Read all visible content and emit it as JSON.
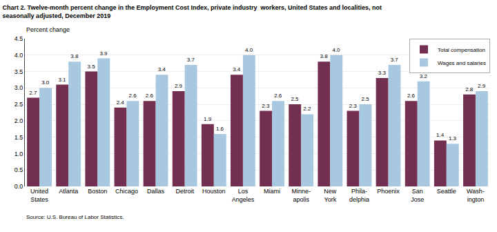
{
  "chart_data": {
    "type": "bar",
    "title": "Chart 2. Twelve-month percent change in the Employment Cost Index, private industry  workers, United States and localities, not\nseasonally adjusted, December 2019",
    "ylabel": "Percent change",
    "annotations": [
      "Source: U.S. Bureau of Labor Statistics."
    ],
    "categories": [
      "United\nStates",
      "Atlanta",
      "Boston",
      "Chicago",
      "Dallas",
      "Detroit",
      "Houston",
      "Los\nAngeles",
      "Miami",
      "Minne-\napolis",
      "New\nYork",
      "Phila-\ndelphia",
      "Phoenix",
      "San\nJose",
      "Seattle",
      "Wash-\nington"
    ],
    "series": [
      {
        "name": "Total compensation",
        "color": "#722F4F",
        "values": [
          2.7,
          3.1,
          3.5,
          2.4,
          2.6,
          2.9,
          1.9,
          3.4,
          2.3,
          2.5,
          3.8,
          2.3,
          3.3,
          2.6,
          1.4,
          2.8
        ],
        "value_labels": [
          "2.7",
          "3.1",
          "3.5",
          "2.4",
          "2.6",
          "2.9",
          "1.9",
          "3.4",
          "2.3",
          "2.5",
          "3.8",
          "2.3",
          "3.3",
          "2.6",
          "1.4",
          "2.8"
        ]
      },
      {
        "name": "Wages and salaries",
        "color": "#A8C8E0",
        "values": [
          3.0,
          3.8,
          3.9,
          2.6,
          3.4,
          3.7,
          1.6,
          4.0,
          2.6,
          2.2,
          4.0,
          2.5,
          3.7,
          3.2,
          1.3,
          2.9
        ],
        "value_labels": [
          "3.0",
          "3.8",
          "3.9",
          "2.6",
          "3.4",
          "3.7",
          "1.6",
          "4.0",
          "2.6",
          "2.2",
          "4.0",
          "2.5",
          "3.7",
          "3.2",
          "1.3",
          "2.9"
        ]
      }
    ],
    "ylim": [
      0,
      4.5
    ],
    "yticks": [
      {
        "value": 0,
        "label": "0.0"
      },
      0.5,
      {
        "value": 1,
        "label": "1.0"
      },
      1.5,
      {
        "value": 2,
        "label": "2.0"
      },
      2.5,
      {
        "value": 3,
        "label": "3.0"
      },
      3.5,
      {
        "value": 4,
        "label": "4.0"
      },
      4.5
    ],
    "grid": true,
    "legend": "upper right",
    "data_labels": true
  }
}
